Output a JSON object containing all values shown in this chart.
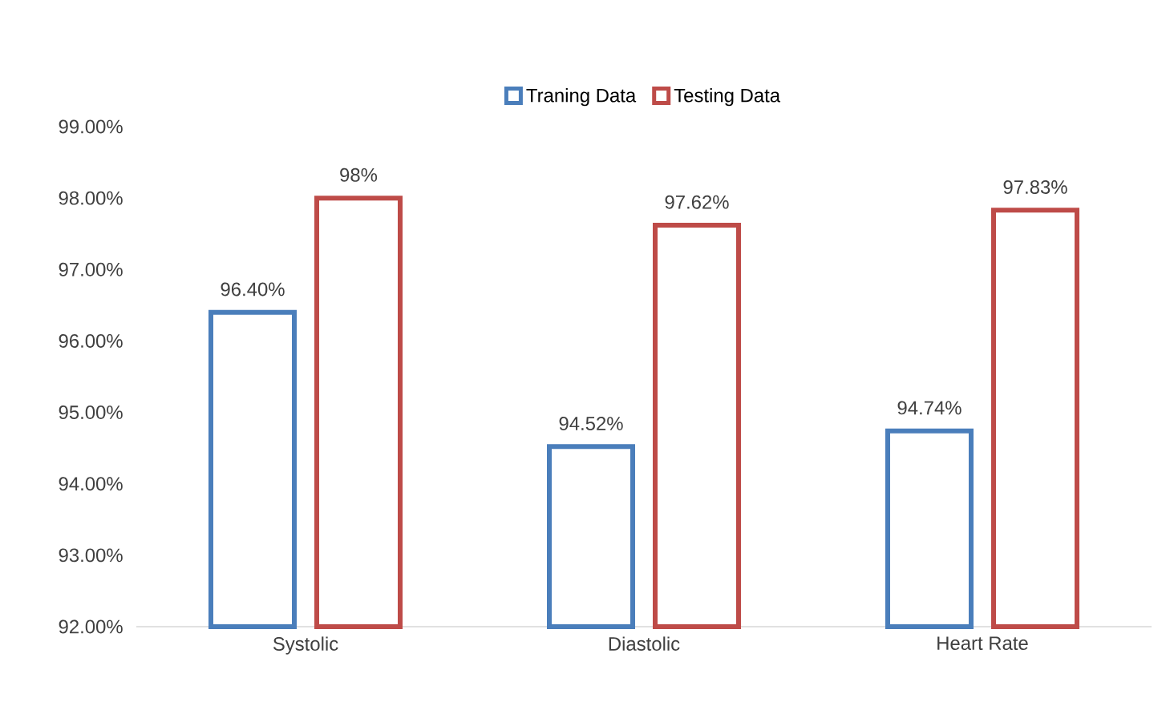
{
  "chart_data": {
    "type": "bar",
    "categories": [
      "Systolic",
      "Diastolic",
      "Heart Rate"
    ],
    "series": [
      {
        "name": "Traning Data",
        "color": "#4a7ebb",
        "values": [
          96.4,
          94.52,
          94.74
        ],
        "value_labels": [
          "96.40%",
          "94.52%",
          "94.74%"
        ]
      },
      {
        "name": "Testing Data",
        "color": "#be4b48",
        "values": [
          98,
          97.62,
          97.83
        ],
        "value_labels": [
          "98%",
          "97.62%",
          "97.83%"
        ]
      }
    ],
    "ylim": [
      92,
      99
    ],
    "yticks": [
      {
        "value": 92,
        "label": "92.00%"
      },
      {
        "value": 93,
        "label": "93.00%"
      },
      {
        "value": 94,
        "label": "94.00%"
      },
      {
        "value": 95,
        "label": "95.00%"
      },
      {
        "value": 96,
        "label": "96.00%"
      },
      {
        "value": 97,
        "label": "97.00%"
      },
      {
        "value": 98,
        "label": "98.00%"
      },
      {
        "value": 99,
        "label": "99.00%"
      }
    ],
    "legend": "top"
  }
}
